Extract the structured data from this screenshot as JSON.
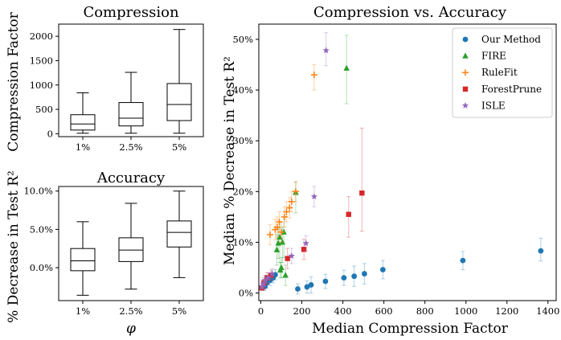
{
  "chart_data": [
    {
      "type": "boxplot",
      "title": "Compression",
      "xlabel": "",
      "ylabel": "Compression Factor",
      "categories": [
        "1%",
        "2.5%",
        "5%"
      ],
      "ylim": [
        -60,
        2250
      ],
      "yticks": [
        "0",
        "500",
        "1000",
        "1500",
        "2000"
      ],
      "ytick_values": [
        0,
        500,
        1000,
        1500,
        2000
      ],
      "boxes": [
        {
          "category": "1%",
          "whisker_low": 10,
          "q1": 75,
          "median": 200,
          "q3": 390,
          "whisker_high": 840
        },
        {
          "category": "2.5%",
          "whisker_low": 10,
          "q1": 160,
          "median": 320,
          "q3": 640,
          "whisker_high": 1260
        },
        {
          "category": "5%",
          "whisker_low": 10,
          "q1": 270,
          "median": 600,
          "q3": 1030,
          "whisker_high": 2140
        }
      ]
    },
    {
      "type": "boxplot",
      "title": "Accuracy",
      "xlabel": "φ",
      "ylabel": "% Decrease in Test R²",
      "categories": [
        "1%",
        "2.5%",
        "5%"
      ],
      "ylim": [
        -4.3,
        10.6
      ],
      "yticks": [
        "0.0%",
        "5.0%",
        "10.0%"
      ],
      "ytick_values": [
        0,
        5,
        10
      ],
      "boxes": [
        {
          "category": "1%",
          "whisker_low": -3.6,
          "q1": -0.4,
          "median": 0.9,
          "q3": 2.5,
          "whisker_high": 6.0
        },
        {
          "category": "2.5%",
          "whisker_low": -2.8,
          "q1": 0.8,
          "median": 2.3,
          "q3": 3.9,
          "whisker_high": 8.4
        },
        {
          "category": "5%",
          "whisker_low": -1.3,
          "q1": 2.7,
          "median": 4.6,
          "q3": 6.1,
          "whisker_high": 10.0
        }
      ]
    },
    {
      "type": "scatter",
      "title": "Compression vs. Accuracy",
      "xlabel": "Median Compression Factor",
      "ylabel": "Median % Decrease in Test R²",
      "xlim": [
        -10,
        1440
      ],
      "ylim": [
        -1.5,
        53
      ],
      "xticks": [
        "0",
        "200",
        "400",
        "600",
        "800",
        "1000",
        "1200",
        "1400"
      ],
      "xtick_values": [
        0,
        200,
        400,
        600,
        800,
        1000,
        1200,
        1400
      ],
      "yticks": [
        "0%",
        "10%",
        "20%",
        "30%",
        "40%",
        "50%"
      ],
      "ytick_values": [
        0,
        10,
        20,
        30,
        40,
        50
      ],
      "legend_position": "top-right",
      "series": [
        {
          "name": "Our Method",
          "color": "#1f77b4",
          "marker": "circle",
          "points": [
            {
              "x": 20,
              "y": 1.3,
              "err": [
                0.8,
                0.8
              ]
            },
            {
              "x": 30,
              "y": 2.0,
              "err": [
                1,
                1
              ]
            },
            {
              "x": 45,
              "y": 2.5,
              "err": [
                1,
                1
              ]
            },
            {
              "x": 60,
              "y": 3.0,
              "err": [
                1,
                1
              ]
            },
            {
              "x": 70,
              "y": 3.6,
              "err": [
                1,
                1
              ]
            },
            {
              "x": 180,
              "y": 0.8,
              "err": [
                1,
                1
              ]
            },
            {
              "x": 225,
              "y": 1.2,
              "err": [
                1.2,
                1.2
              ]
            },
            {
              "x": 245,
              "y": 1.6,
              "err": [
                1.6,
                1.6
              ]
            },
            {
              "x": 315,
              "y": 2.3,
              "err": [
                1.4,
                1.4
              ]
            },
            {
              "x": 405,
              "y": 3.0,
              "err": [
                1.5,
                1.5
              ]
            },
            {
              "x": 455,
              "y": 3.3,
              "err": [
                2,
                2
              ]
            },
            {
              "x": 505,
              "y": 3.8,
              "err": [
                2,
                2
              ]
            },
            {
              "x": 595,
              "y": 4.6,
              "err": [
                1.8,
                1.8
              ]
            },
            {
              "x": 985,
              "y": 6.4,
              "err": [
                1.8,
                1.8
              ]
            },
            {
              "x": 1365,
              "y": 8.3,
              "err": [
                2,
                2.5
              ]
            }
          ]
        },
        {
          "name": "FIRE",
          "color": "#2ca02c",
          "marker": "triangle",
          "points": [
            {
              "x": 78,
              "y": 8.5,
              "err": [
                3,
                3
              ]
            },
            {
              "x": 85,
              "y": 9.8,
              "err": [
                3,
                3
              ]
            },
            {
              "x": 92,
              "y": 11.0,
              "err": [
                5,
                3
              ]
            },
            {
              "x": 100,
              "y": 5.0,
              "err": [
                2,
                2
              ]
            },
            {
              "x": 105,
              "y": 10.0,
              "err": [
                4,
                3
              ]
            },
            {
              "x": 112,
              "y": 12.0,
              "err": [
                5,
                3
              ]
            },
            {
              "x": 120,
              "y": 3.5,
              "err": [
                2,
                2
              ]
            },
            {
              "x": 95,
              "y": 4.5,
              "err": [
                1.5,
                1.5
              ]
            },
            {
              "x": 170,
              "y": 19.8,
              "err": [
                4,
                2
              ]
            },
            {
              "x": 418,
              "y": 44.3,
              "err": [
                7,
                6.5
              ]
            }
          ]
        },
        {
          "name": "RuleFit",
          "color": "#ff7f0e",
          "marker": "plus",
          "points": [
            {
              "x": 45,
              "y": 11.5,
              "err": [
                2,
                2
              ]
            },
            {
              "x": 70,
              "y": 12.5,
              "err": [
                2,
                2
              ]
            },
            {
              "x": 80,
              "y": 13.0,
              "err": [
                2,
                2
              ]
            },
            {
              "x": 90,
              "y": 14.0,
              "err": [
                2,
                2
              ]
            },
            {
              "x": 100,
              "y": 12.0,
              "err": [
                2,
                2
              ]
            },
            {
              "x": 115,
              "y": 15.0,
              "err": [
                2,
                2
              ]
            },
            {
              "x": 125,
              "y": 16.0,
              "err": [
                2,
                2
              ]
            },
            {
              "x": 140,
              "y": 16.8,
              "err": [
                2,
                2
              ]
            },
            {
              "x": 150,
              "y": 18.0,
              "err": [
                2,
                2
              ]
            },
            {
              "x": 170,
              "y": 20.0,
              "err": [
                2,
                2
              ]
            },
            {
              "x": 260,
              "y": 43.0,
              "err": [
                3,
                2
              ]
            }
          ]
        },
        {
          "name": "ForestPrune",
          "color": "#d62728",
          "marker": "square",
          "points": [
            {
              "x": 5,
              "y": 1.0,
              "err": [
                0.5,
                0.5
              ]
            },
            {
              "x": 15,
              "y": 2.0,
              "err": [
                1,
                1
              ]
            },
            {
              "x": 30,
              "y": 3.0,
              "err": [
                1,
                1
              ]
            },
            {
              "x": 50,
              "y": 3.5,
              "err": [
                1,
                1
              ]
            },
            {
              "x": 130,
              "y": 6.8,
              "err": [
                2,
                2
              ]
            },
            {
              "x": 210,
              "y": 8.6,
              "err": [
                2,
                2
              ]
            },
            {
              "x": 428,
              "y": 15.5,
              "err": [
                4.5,
                3.5
              ]
            },
            {
              "x": 493,
              "y": 19.7,
              "err": [
                7.5,
                12.8
              ]
            }
          ]
        },
        {
          "name": "ISLE",
          "color": "#9467bd",
          "marker": "star",
          "points": [
            {
              "x": 5,
              "y": 1.2,
              "err": [
                0.5,
                0.5
              ]
            },
            {
              "x": 12,
              "y": 1.8,
              "err": [
                0.8,
                0.8
              ]
            },
            {
              "x": 20,
              "y": 2.5,
              "err": [
                1,
                1
              ]
            },
            {
              "x": 35,
              "y": 3.0,
              "err": [
                1,
                1
              ]
            },
            {
              "x": 55,
              "y": 3.8,
              "err": [
                1,
                1
              ]
            },
            {
              "x": 150,
              "y": 7.3,
              "err": [
                1.5,
                1.5
              ]
            },
            {
              "x": 220,
              "y": 9.8,
              "err": [
                1.5,
                1.5
              ]
            },
            {
              "x": 260,
              "y": 19.0,
              "err": [
                2,
                2
              ]
            },
            {
              "x": 318,
              "y": 47.8,
              "err": [
                3,
                3.5
              ]
            }
          ]
        }
      ]
    }
  ]
}
